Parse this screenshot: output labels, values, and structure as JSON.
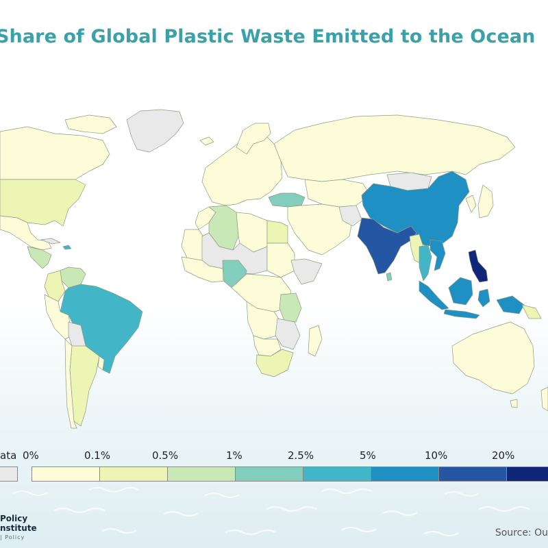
{
  "title": "Share of Global Plastic Waste Emitted to the Ocean",
  "legend": {
    "no_data_label": "ata",
    "no_data_color": "#e9e9e9",
    "bins": [
      {
        "label": "0%",
        "color": "#fdfcd9"
      },
      {
        "label": "0.1%",
        "color": "#ecf5b4"
      },
      {
        "label": "0.5%",
        "color": "#c8e8b6"
      },
      {
        "label": "1%",
        "color": "#83cdbd"
      },
      {
        "label": "2.5%",
        "color": "#42b5c6"
      },
      {
        "label": "5%",
        "color": "#1e90c3"
      },
      {
        "label": "10%",
        "color": "#2456a3"
      },
      {
        "label": "20%",
        "color": "#0f2679"
      }
    ]
  },
  "logo": {
    "line1": "Policy",
    "line2": "nstitute",
    "tagline": "| Policy"
  },
  "source": "Source: Ou"
}
